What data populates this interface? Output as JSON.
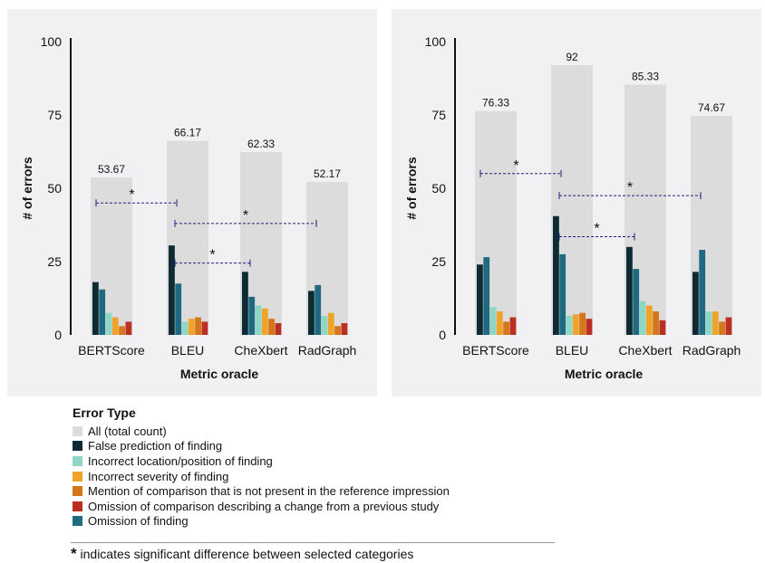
{
  "chart_data": [
    {
      "type": "bar",
      "xlabel": "Metric oracle",
      "ylabel": "# of errors",
      "ylim": [
        0,
        100
      ],
      "yticks": [
        0,
        25,
        50,
        75,
        100
      ],
      "categories": [
        "BERTScore",
        "BLEU",
        "CheXbert",
        "RadGraph"
      ],
      "totals": [
        53.67,
        66.17,
        62.33,
        52.17
      ],
      "total_labels": [
        "53.67",
        "66.17",
        "62.33",
        "52.17"
      ],
      "series": [
        {
          "name": "False prediction of finding",
          "color": "#0e2a33",
          "values": [
            18,
            30.5,
            21.5,
            15
          ]
        },
        {
          "name": "Omission of finding",
          "color": "#1f6a80",
          "values": [
            15.5,
            17.5,
            13,
            17
          ]
        },
        {
          "name": "Incorrect location/position of finding",
          "color": "#8fd6c4",
          "values": [
            7.5,
            4.5,
            10,
            6.5
          ]
        },
        {
          "name": "Incorrect severity of finding",
          "color": "#f0a32a",
          "values": [
            6,
            5.5,
            9,
            7.5
          ]
        },
        {
          "name": "Mention of comparison that is not present in the reference impression",
          "color": "#d4761a",
          "values": [
            3,
            6,
            5.5,
            3
          ]
        },
        {
          "name": "Omission of comparison describing a change from a previous study",
          "color": "#bd2e22",
          "values": [
            4.5,
            4.5,
            4,
            4
          ]
        }
      ],
      "significance": [
        {
          "from": "BERTScore",
          "to": "BLEU",
          "y": 45,
          "label": "*"
        },
        {
          "from": "BLEU",
          "to": "RadGraph",
          "y": 38,
          "label": "*"
        },
        {
          "from": "BLEU",
          "to": "CheXbert",
          "y": 24.5,
          "label": "*"
        }
      ]
    },
    {
      "type": "bar",
      "xlabel": "Metric oracle",
      "ylabel": "# of errors",
      "ylim": [
        0,
        100
      ],
      "yticks": [
        0,
        25,
        50,
        75,
        100
      ],
      "categories": [
        "BERTScore",
        "BLEU",
        "CheXbert",
        "RadGraph"
      ],
      "totals": [
        76.33,
        92,
        85.33,
        74.67
      ],
      "total_labels": [
        "76.33",
        "92",
        "85.33",
        "74.67"
      ],
      "series": [
        {
          "name": "False prediction of finding",
          "color": "#0e2a33",
          "values": [
            24,
            40.5,
            30,
            21.5
          ]
        },
        {
          "name": "Omission of finding",
          "color": "#1f6a80",
          "values": [
            26.5,
            27.5,
            22.5,
            29
          ]
        },
        {
          "name": "Incorrect location/position of finding",
          "color": "#8fd6c4",
          "values": [
            9.5,
            6.5,
            11.5,
            8
          ]
        },
        {
          "name": "Incorrect severity of finding",
          "color": "#f0a32a",
          "values": [
            8,
            7,
            10,
            8
          ]
        },
        {
          "name": "Mention of comparison that is not present in the reference impression",
          "color": "#d4761a",
          "values": [
            4.5,
            7.5,
            8,
            4.5
          ]
        },
        {
          "name": "Omission of comparison describing a change from a previous study",
          "color": "#bd2e22",
          "values": [
            6,
            5.5,
            5,
            6
          ]
        }
      ],
      "significance": [
        {
          "from": "BERTScore",
          "to": "BLEU",
          "y": 55,
          "label": "*"
        },
        {
          "from": "BLEU",
          "to": "RadGraph",
          "y": 47.5,
          "label": "*"
        },
        {
          "from": "BLEU",
          "to": "CheXbert",
          "y": 33.5,
          "label": "*"
        }
      ]
    }
  ],
  "legend": {
    "title": "Error Type",
    "items": [
      {
        "label": "All (total count)",
        "color": "#dcdcdc"
      },
      {
        "label": "False prediction of finding",
        "color": "#0e2a33"
      },
      {
        "label": "Incorrect location/position of finding",
        "color": "#8fd6c4"
      },
      {
        "label": "Incorrect severity of finding",
        "color": "#f0a32a"
      },
      {
        "label": "Mention of comparison that is not present in the reference impression",
        "color": "#d4761a"
      },
      {
        "label": "Omission of comparison describing a change from a previous study",
        "color": "#bd2e22"
      },
      {
        "label": "Omission of finding",
        "color": "#1f6a80"
      }
    ]
  },
  "footnote": {
    "star": "*",
    "text": " indicates significant difference between selected categories"
  }
}
